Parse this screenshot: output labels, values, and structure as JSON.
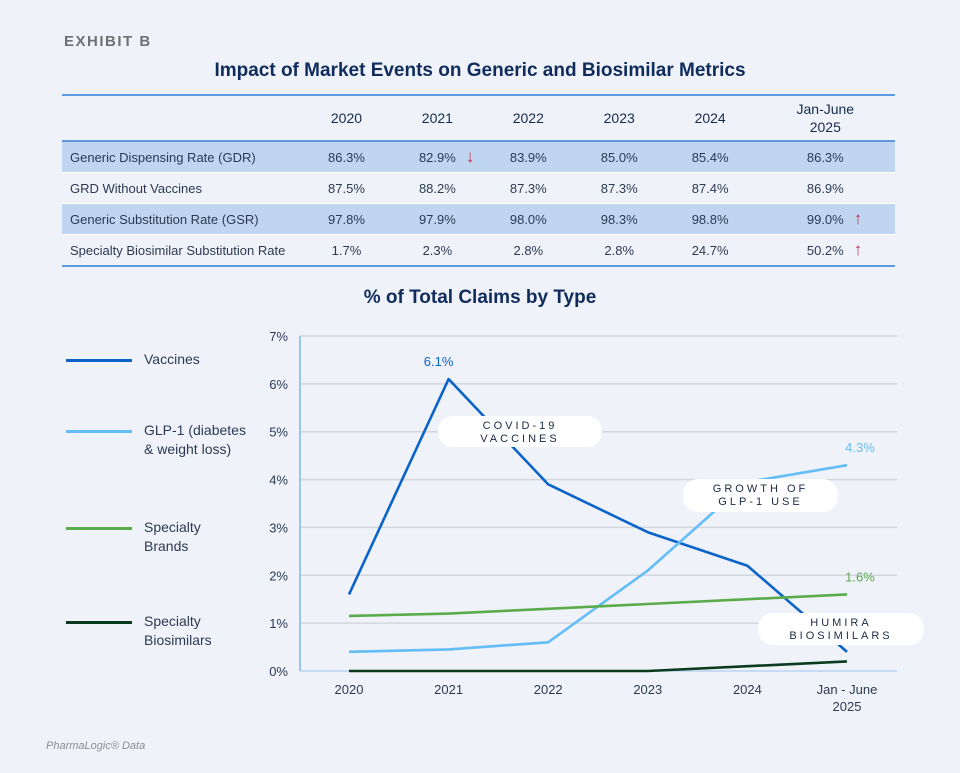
{
  "exhibit_label": "EXHIBIT B",
  "table": {
    "title": "Impact of Market Events on Generic and Biosimilar Metrics",
    "columns": [
      "2020",
      "2021",
      "2022",
      "2023",
      "2024",
      "Jan-June\n2025"
    ],
    "rows": [
      {
        "label": "Generic Dispensing Rate (GDR)",
        "values": [
          "86.3%",
          "82.9%",
          "83.9%",
          "85.0%",
          "85.4%",
          "86.3%"
        ],
        "highlight": true,
        "arrows": {
          "1": "↓"
        }
      },
      {
        "label": "GRD Without Vaccines",
        "values": [
          "87.5%",
          "88.2%",
          "87.3%",
          "87.3%",
          "87.4%",
          "86.9%"
        ],
        "highlight": false,
        "arrows": {}
      },
      {
        "label": "Generic Substitution Rate (GSR)",
        "values": [
          "97.8%",
          "97.9%",
          "98.0%",
          "98.3%",
          "98.8%",
          "99.0%"
        ],
        "highlight": true,
        "arrows": {
          "5": "↑"
        }
      },
      {
        "label": "Specialty Biosimilar Substitution Rate",
        "values": [
          "1.7%",
          "2.3%",
          "2.8%",
          "2.8%",
          "24.7%",
          "50.2%"
        ],
        "highlight": false,
        "arrows": {
          "5": "↑"
        }
      }
    ],
    "colors": {
      "header_rule": "#5c9ae0",
      "highlight_row": "#c0d6f0",
      "arrow": "#c0304a"
    }
  },
  "chart_data": {
    "type": "line",
    "title": "% of Total Claims by Type",
    "categories": [
      "2020",
      "2021",
      "2022",
      "2023",
      "2024",
      "Jan - June\n2025"
    ],
    "ylim": [
      0,
      7
    ],
    "yticks": [
      "0%",
      "1%",
      "2%",
      "3%",
      "4%",
      "5%",
      "6%",
      "7%"
    ],
    "grid": true,
    "legend_position": "left",
    "series": [
      {
        "name": "Vaccines",
        "color": "#0a63c9",
        "values": [
          1.6,
          6.1,
          3.9,
          2.9,
          2.2,
          0.4
        ]
      },
      {
        "name": "GLP-1 (diabetes\n& weight loss)",
        "color": "#63bdf6",
        "values": [
          0.4,
          0.45,
          0.6,
          2.1,
          3.95,
          4.3
        ]
      },
      {
        "name": "Specialty\nBrands",
        "color": "#5aac4a",
        "values": [
          1.15,
          1.2,
          1.3,
          1.4,
          1.5,
          1.6
        ]
      },
      {
        "name": "Specialty\nBiosimilars",
        "color": "#0b3b1f",
        "values": [
          0,
          0,
          0,
          0,
          0.1,
          0.2
        ]
      }
    ],
    "data_labels": [
      {
        "series": 0,
        "index": 1,
        "text": "6.1%"
      },
      {
        "series": 1,
        "index": 5,
        "text": "4.3%"
      },
      {
        "series": 2,
        "index": 5,
        "text": "1.6%"
      }
    ],
    "annotations": [
      "COVID-19\nVACCINES",
      "GROWTH OF\nGLP-1 USE",
      "HUMIRA\nBIOSIMILARS"
    ]
  },
  "footer": "PharmaLogic® Data"
}
